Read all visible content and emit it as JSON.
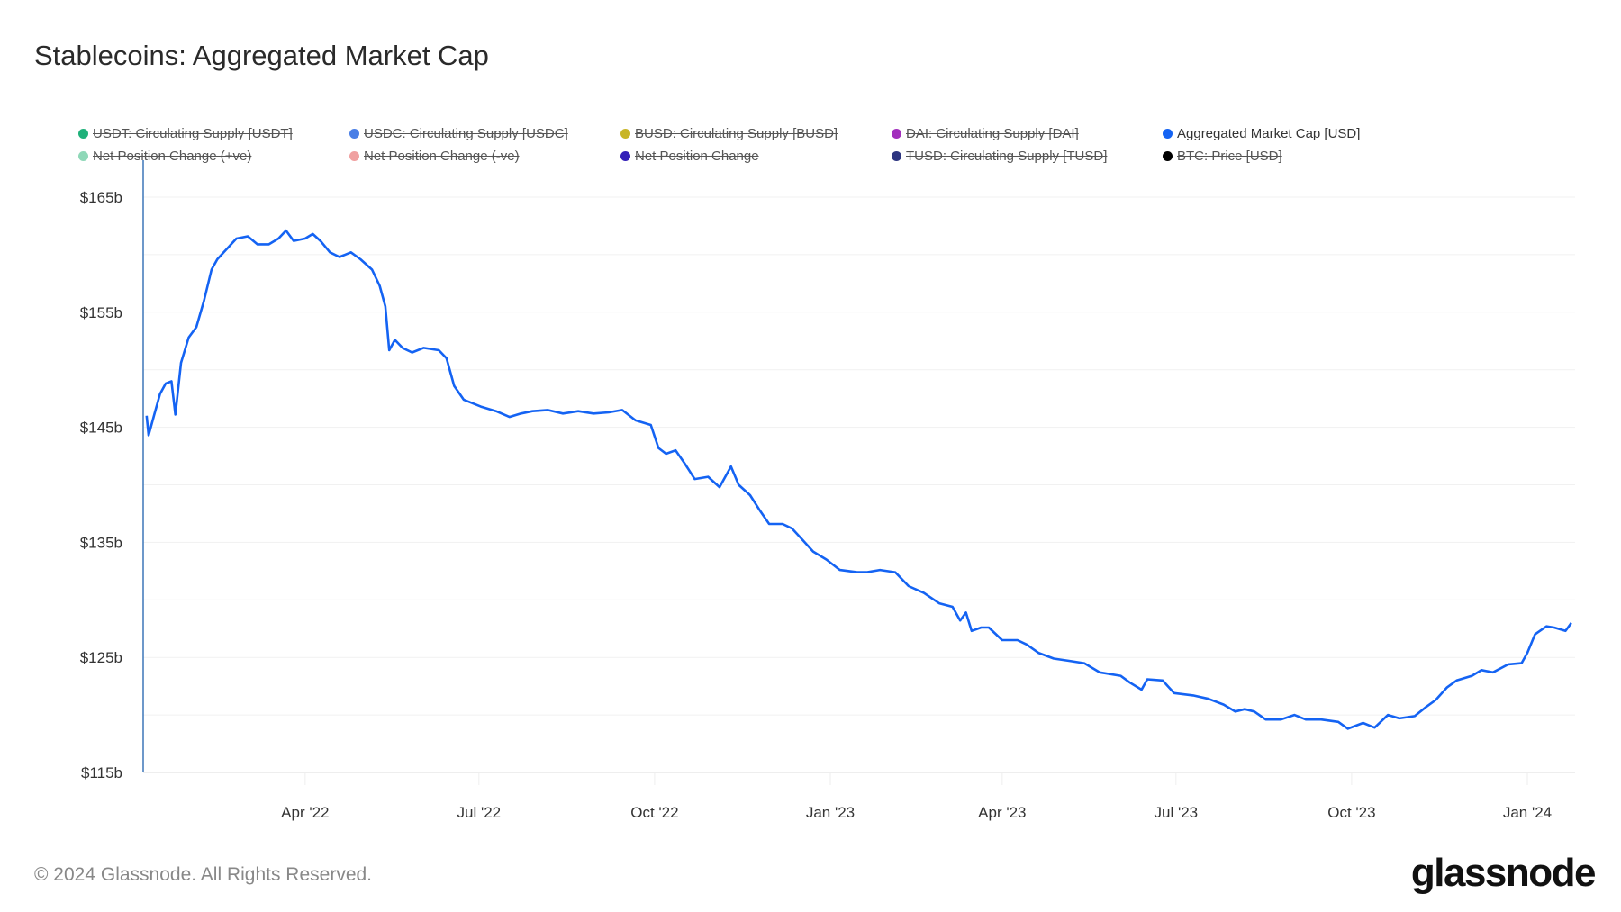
{
  "title": "Stablecoins: Aggregated Market Cap",
  "legend": [
    {
      "label": "USDT: Circulating Supply [USDT]",
      "color": "#1fb17a",
      "active": false
    },
    {
      "label": "USDC: Circulating Supply [USDC]",
      "color": "#4a7fe6",
      "active": false
    },
    {
      "label": "BUSD: Circulating Supply [BUSD]",
      "color": "#c8b526",
      "active": false
    },
    {
      "label": "DAI: Circulating Supply [DAI]",
      "color": "#a22fbd",
      "active": false
    },
    {
      "label": "Aggregated Market Cap [USD]",
      "color": "#1463f3",
      "active": true
    },
    {
      "label": "Net Position Change (+ve)",
      "color": "#8fd8b8",
      "active": false
    },
    {
      "label": "Net Position Change (-ve)",
      "color": "#f0a0a0",
      "active": false
    },
    {
      "label": "Net Position Change",
      "color": "#3320b8",
      "active": false
    },
    {
      "label": "TUSD: Circulating Supply [TUSD]",
      "color": "#2d3580",
      "active": false
    },
    {
      "label": "BTC: Price [USD]",
      "color": "#000000",
      "active": false
    }
  ],
  "footer": "© 2024 Glassnode. All Rights Reserved.",
  "logo": "glassnode",
  "chart_data": {
    "type": "line",
    "title": "Stablecoins: Aggregated Market Cap",
    "x_unit": "days since 2022-01-01",
    "xlim": [
      7,
      753
    ],
    "ylim": [
      115,
      165
    ],
    "yticks": [
      {
        "value": 165,
        "label": "$165b"
      },
      {
        "value": 155,
        "label": "$155b"
      },
      {
        "value": 145,
        "label": "$145b"
      },
      {
        "value": 135,
        "label": "$135b"
      },
      {
        "value": 125,
        "label": "$125b"
      },
      {
        "value": 115,
        "label": "$115b"
      }
    ],
    "ygrid_step": 5,
    "xticks": [
      {
        "value": 90,
        "label": "Apr '22"
      },
      {
        "value": 181,
        "label": "Jul '22"
      },
      {
        "value": 273,
        "label": "Oct '22"
      },
      {
        "value": 365,
        "label": "Jan '23"
      },
      {
        "value": 455,
        "label": "Apr '23"
      },
      {
        "value": 546,
        "label": "Jul '23"
      },
      {
        "value": 638,
        "label": "Oct '23"
      },
      {
        "value": 730,
        "label": "Jan '24"
      }
    ],
    "series": [
      {
        "name": "Aggregated Market Cap [USD]",
        "color": "#1463f3",
        "x": [
          7,
          8,
          11,
          14,
          17,
          20,
          22,
          25,
          29,
          33,
          37,
          41,
          44,
          49,
          54,
          60,
          65,
          71,
          76,
          80,
          84,
          90,
          94,
          98,
          103,
          108,
          114,
          119,
          125,
          129,
          132,
          134,
          137,
          141,
          146,
          152,
          160,
          164,
          168,
          173,
          182,
          190,
          197,
          203,
          209,
          217,
          225,
          233,
          241,
          249,
          256,
          263,
          271,
          275,
          279,
          284,
          289,
          294,
          301,
          307,
          313,
          317,
          323,
          328,
          333,
          340,
          345,
          350,
          356,
          363,
          370,
          379,
          384,
          391,
          399,
          406,
          414,
          422,
          429,
          433,
          436,
          439,
          444,
          448,
          455,
          463,
          468,
          474,
          482,
          490,
          498,
          506,
          517,
          522,
          528,
          531,
          539,
          545,
          555,
          563,
          571,
          577,
          582,
          587,
          593,
          601,
          608,
          614,
          622,
          631,
          636,
          644,
          650,
          657,
          663,
          671,
          677,
          682,
          688,
          693,
          701,
          706,
          712,
          720,
          727,
          730,
          734,
          740,
          744,
          750,
          753
        ],
        "values": [
          146,
          144.3,
          146.1,
          147.9,
          148.8,
          149,
          146.1,
          150.6,
          152.8,
          153.7,
          156,
          158.7,
          159.6,
          160.5,
          161.4,
          161.6,
          160.9,
          160.9,
          161.4,
          162.1,
          161.2,
          161.4,
          161.8,
          161.2,
          160.2,
          159.8,
          160.2,
          159.6,
          158.7,
          157.3,
          155.5,
          151.7,
          152.6,
          151.9,
          151.5,
          151.9,
          151.7,
          151,
          148.6,
          147.4,
          146.8,
          146.4,
          145.9,
          146.2,
          146.4,
          146.5,
          146.2,
          146.4,
          146.2,
          146.3,
          146.5,
          145.6,
          145.2,
          143.2,
          142.7,
          143,
          141.8,
          140.5,
          140.7,
          139.8,
          141.6,
          140,
          139.1,
          137.8,
          136.6,
          136.6,
          136.2,
          135.3,
          134.2,
          133.5,
          132.6,
          132.4,
          132.4,
          132.6,
          132.4,
          131.2,
          130.6,
          129.7,
          129.4,
          128.2,
          128.9,
          127.3,
          127.6,
          127.6,
          126.5,
          126.5,
          126.1,
          125.4,
          124.9,
          124.7,
          124.5,
          123.7,
          123.4,
          122.8,
          122.2,
          123.1,
          123,
          121.9,
          121.7,
          121.4,
          120.9,
          120.3,
          120.5,
          120.3,
          119.6,
          119.6,
          120,
          119.6,
          119.6,
          119.4,
          118.8,
          119.3,
          118.9,
          120,
          119.7,
          119.9,
          120.7,
          121.3,
          122.4,
          123,
          123.4,
          123.9,
          123.7,
          124.4,
          124.5,
          125.4,
          127,
          127.7,
          127.6,
          127.3,
          128
        ]
      }
    ]
  }
}
